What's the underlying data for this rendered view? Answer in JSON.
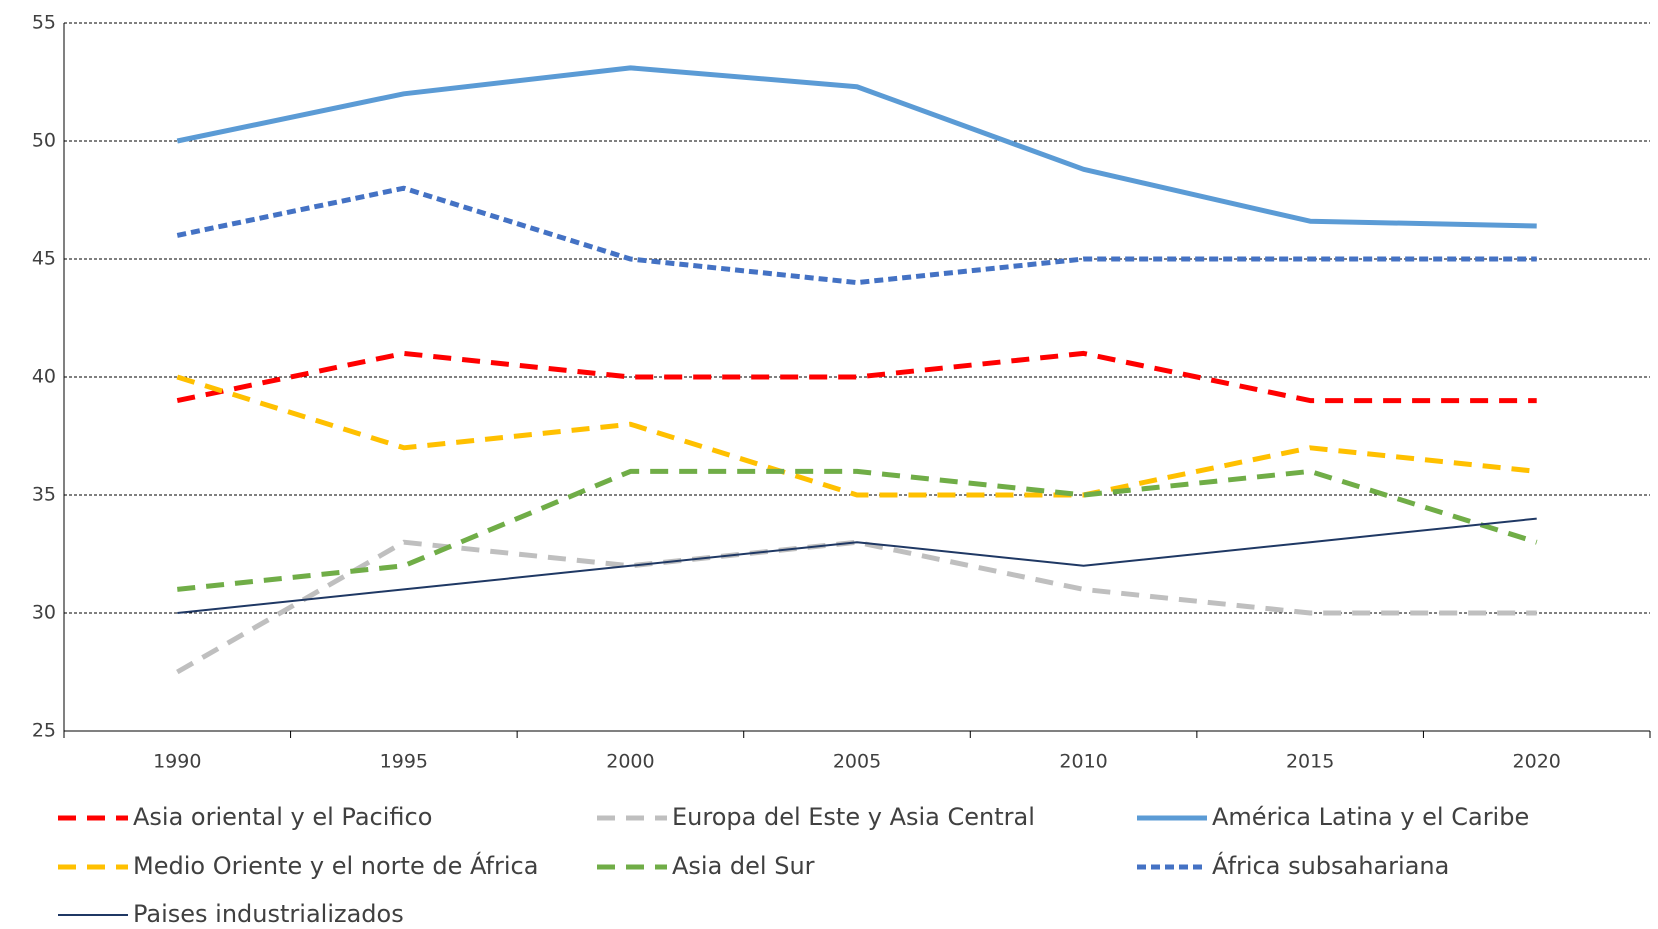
{
  "chart_data": {
    "type": "line",
    "categories": [
      "1990",
      "1995",
      "2000",
      "2005",
      "2010",
      "2015",
      "2020"
    ],
    "ylim": [
      25,
      55
    ],
    "yticks": [
      25,
      30,
      35,
      40,
      45,
      50,
      55
    ],
    "grid": true,
    "series": [
      {
        "name": "Asia oriental y el Pacifico",
        "color": "#ff0000",
        "dash": "dash",
        "values": [
          39,
          41,
          40,
          40,
          41,
          39,
          39
        ]
      },
      {
        "name": "Europa del Este y Asia Central",
        "color": "#bfbfbf",
        "dash": "dash",
        "values": [
          27.5,
          33,
          32,
          33,
          31,
          30,
          30
        ]
      },
      {
        "name": "América Latina y el Caribe",
        "color": "#5b9bd5",
        "dash": "solid",
        "values": [
          50,
          52,
          53.1,
          52.3,
          48.8,
          46.6,
          46.4
        ]
      },
      {
        "name": "Medio Oriente y el norte de África",
        "color": "#ffc000",
        "dash": "dash",
        "values": [
          40,
          37,
          38,
          35,
          35,
          37,
          36
        ]
      },
      {
        "name": "Asia del Sur",
        "color": "#70ad47",
        "dash": "dash",
        "values": [
          31,
          32,
          36,
          36,
          35,
          36,
          33
        ]
      },
      {
        "name": "África subsahariana",
        "color": "#4472c4",
        "dash": "dot",
        "values": [
          46,
          48,
          45,
          44,
          45,
          45,
          45
        ]
      },
      {
        "name": "Paises industrializados",
        "color": "#1f3864",
        "dash": "thin",
        "values": [
          30,
          31,
          32,
          33,
          32,
          33,
          34
        ]
      }
    ]
  }
}
